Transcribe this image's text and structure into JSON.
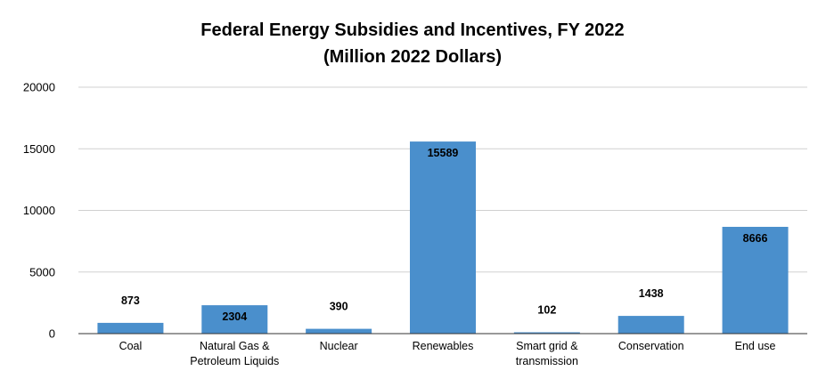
{
  "chart_data": {
    "type": "bar",
    "title": "Federal Energy Subsidies and Incentives, FY 2022",
    "subtitle": "(Million 2022 Dollars)",
    "xlabel": "",
    "ylabel": "",
    "categories": [
      [
        "Coal"
      ],
      [
        "Natural Gas &",
        "Petroleum Liquids"
      ],
      [
        "Nuclear"
      ],
      [
        "Renewables"
      ],
      [
        "Smart grid &",
        "transmission"
      ],
      [
        "Conservation"
      ],
      [
        "End use"
      ]
    ],
    "values": [
      873,
      2304,
      390,
      15589,
      102,
      1438,
      8666
    ],
    "data_labels": [
      "873",
      "2304",
      "390",
      "15589",
      "102",
      "1438",
      "8666"
    ],
    "ylim": [
      0,
      20000
    ],
    "yticks": [
      0,
      5000,
      10000,
      15000,
      20000
    ],
    "ytick_labels": [
      "0",
      "5000",
      "10000",
      "15000",
      "20000"
    ],
    "grid": true,
    "legend": "none",
    "bar_color": "#4A8FCC",
    "grid_color": "#d0d0d0"
  }
}
